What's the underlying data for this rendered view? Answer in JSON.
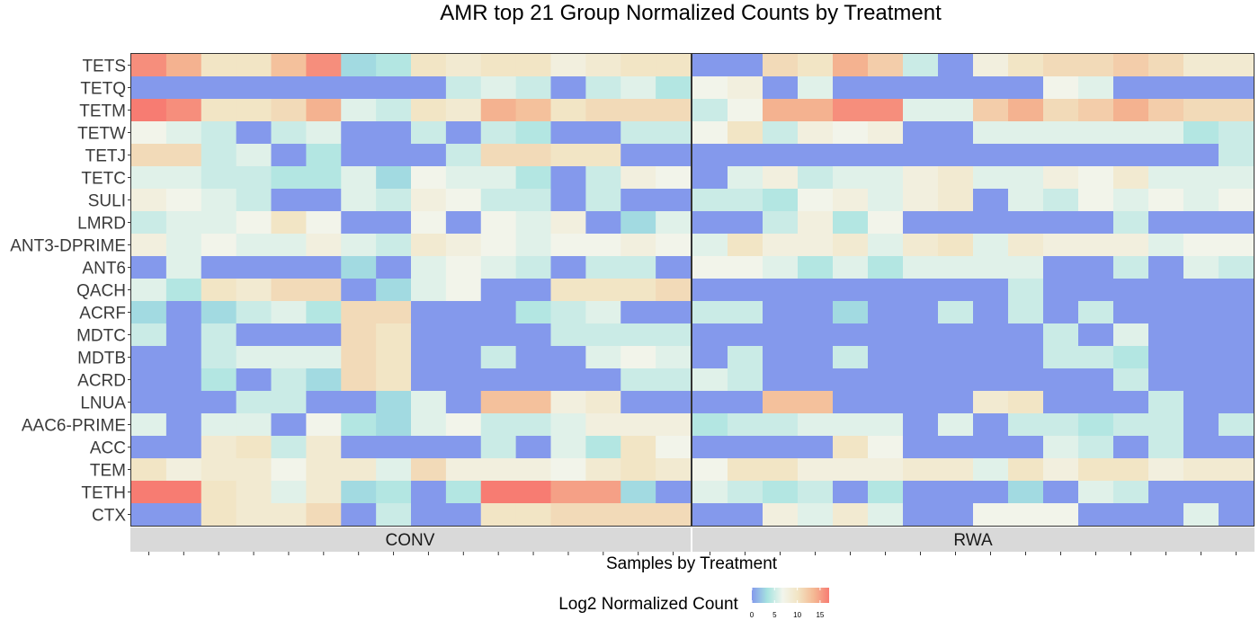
{
  "chart_data": {
    "type": "heatmap",
    "title": "AMR top 21 Group Normalized Counts by Treatment",
    "xlabel": "Samples by Treatment",
    "legend": {
      "title": "Log2 Normalized Count",
      "ticks": [
        0,
        5,
        10,
        15
      ],
      "range": [
        0,
        17
      ],
      "placement": "bottom"
    },
    "colors": [
      "#8499ec",
      "#a6e3e0",
      "#f2f5ec",
      "#f2e4c3",
      "#f4b994",
      "#f77c72"
    ],
    "rows": [
      "TETS",
      "TETQ",
      "TETM",
      "TETW",
      "TETJ",
      "TETC",
      "SULI",
      "LMRD",
      "ANT3-DPRIME",
      "ANT6",
      "QACH",
      "ACRF",
      "MDTC",
      "MDTB",
      "ACRD",
      "LNUA",
      "AAC6-PRIME",
      "ACC",
      "TEM",
      "TETH",
      "CTX"
    ],
    "panels": [
      {
        "name": "CONV",
        "values": [
          [
            16,
            14,
            10,
            10,
            13,
            16,
            3,
            4,
            10,
            9,
            10,
            10,
            8,
            9,
            10,
            10
          ],
          [
            0,
            0,
            0,
            0,
            0,
            0,
            0,
            0,
            0,
            5,
            6,
            5,
            0,
            5,
            6,
            4
          ],
          [
            17,
            16,
            10,
            10,
            11,
            14,
            6,
            5,
            10,
            9,
            14,
            13,
            10,
            11,
            11,
            11
          ],
          [
            7,
            6,
            5,
            0,
            5,
            6,
            0,
            0,
            5,
            0,
            5,
            4,
            0,
            0,
            5,
            5
          ],
          [
            11,
            11,
            5,
            6,
            0,
            4,
            0,
            0,
            0,
            5,
            11,
            11,
            10,
            10,
            0,
            0
          ],
          [
            6,
            6,
            5,
            5,
            4,
            4,
            6,
            3,
            7,
            6,
            6,
            4,
            0,
            5,
            8,
            7
          ],
          [
            8,
            7,
            6,
            5,
            0,
            0,
            6,
            5,
            8,
            7,
            5,
            5,
            0,
            5,
            0,
            0
          ],
          [
            5,
            6,
            6,
            7,
            10,
            7,
            0,
            0,
            7,
            0,
            7,
            6,
            8,
            0,
            3,
            6
          ],
          [
            8,
            6,
            7,
            6,
            6,
            8,
            6,
            5,
            9,
            8,
            7,
            6,
            7,
            7,
            8,
            7
          ],
          [
            0,
            6,
            0,
            0,
            0,
            0,
            3,
            0,
            6,
            7,
            6,
            5,
            0,
            5,
            5,
            0
          ],
          [
            6,
            4,
            10,
            9,
            11,
            11,
            0,
            3,
            6,
            7,
            0,
            0,
            10,
            10,
            10,
            11
          ],
          [
            3,
            0,
            3,
            5,
            6,
            4,
            11,
            11,
            0,
            0,
            0,
            4,
            5,
            6,
            0,
            0
          ],
          [
            5,
            0,
            5,
            0,
            0,
            0,
            11,
            10,
            0,
            0,
            0,
            0,
            5,
            5,
            5,
            5
          ],
          [
            0,
            0,
            5,
            6,
            6,
            6,
            11,
            10,
            0,
            0,
            5,
            0,
            0,
            6,
            7,
            6
          ],
          [
            0,
            0,
            4,
            0,
            5,
            3,
            11,
            10,
            0,
            0,
            0,
            0,
            0,
            0,
            5,
            5
          ],
          [
            0,
            0,
            0,
            5,
            5,
            0,
            0,
            3,
            6,
            0,
            13,
            13,
            8,
            9,
            0,
            0
          ],
          [
            6,
            0,
            6,
            6,
            0,
            7,
            4,
            3,
            6,
            7,
            5,
            5,
            6,
            8,
            8,
            8
          ],
          [
            0,
            0,
            9,
            10,
            5,
            9,
            0,
            0,
            0,
            0,
            5,
            0,
            6,
            4,
            10,
            7
          ],
          [
            10,
            8,
            9,
            9,
            7,
            9,
            9,
            6,
            11,
            8,
            8,
            8,
            7,
            9,
            10,
            9
          ],
          [
            17,
            17,
            10,
            9,
            6,
            9,
            3,
            4,
            0,
            4,
            17,
            17,
            15,
            15,
            3,
            0
          ],
          [
            0,
            0,
            10,
            9,
            9,
            11,
            0,
            5,
            0,
            0,
            10,
            10,
            11,
            11,
            11,
            11
          ]
        ]
      },
      {
        "name": "RWA",
        "values": [
          [
            0,
            0,
            11,
            10,
            14,
            12,
            5,
            0,
            8,
            10,
            11,
            11,
            12,
            11,
            9,
            9
          ],
          [
            7,
            8,
            0,
            6,
            0,
            0,
            0,
            0,
            0,
            0,
            7,
            6,
            0,
            0,
            0,
            0
          ],
          [
            5,
            7,
            14,
            14,
            16,
            16,
            6,
            6,
            12,
            14,
            11,
            12,
            14,
            12,
            11,
            11
          ],
          [
            7,
            10,
            5,
            8,
            7,
            8,
            0,
            0,
            6,
            6,
            6,
            6,
            6,
            6,
            4,
            5
          ],
          [
            0,
            0,
            0,
            0,
            0,
            0,
            0,
            0,
            0,
            0,
            0,
            0,
            0,
            0,
            0,
            5
          ],
          [
            0,
            6,
            8,
            5,
            6,
            6,
            8,
            9,
            6,
            6,
            8,
            7,
            9,
            6,
            6,
            6
          ],
          [
            5,
            5,
            4,
            7,
            8,
            6,
            8,
            9,
            0,
            6,
            5,
            7,
            6,
            7,
            6,
            7
          ],
          [
            0,
            0,
            5,
            8,
            4,
            7,
            0,
            0,
            0,
            0,
            0,
            0,
            5,
            0,
            0,
            0
          ],
          [
            6,
            10,
            8,
            8,
            9,
            6,
            9,
            10,
            6,
            9,
            8,
            8,
            8,
            6,
            7,
            7
          ],
          [
            7,
            7,
            6,
            4,
            6,
            4,
            6,
            6,
            6,
            6,
            0,
            0,
            5,
            0,
            6,
            5
          ],
          [
            0,
            0,
            0,
            0,
            0,
            0,
            0,
            0,
            0,
            5,
            0,
            0,
            0,
            0,
            0,
            0
          ],
          [
            5,
            5,
            0,
            0,
            3,
            0,
            0,
            5,
            0,
            5,
            0,
            5,
            0,
            0,
            0,
            0
          ],
          [
            0,
            0,
            0,
            0,
            0,
            0,
            0,
            0,
            0,
            0,
            5,
            0,
            6,
            0,
            0,
            0
          ],
          [
            0,
            5,
            0,
            0,
            5,
            0,
            0,
            0,
            0,
            0,
            5,
            5,
            4,
            0,
            0,
            0
          ],
          [
            6,
            5,
            0,
            0,
            0,
            0,
            0,
            0,
            0,
            0,
            0,
            0,
            5,
            0,
            0,
            0
          ],
          [
            0,
            0,
            13,
            13,
            0,
            0,
            0,
            0,
            9,
            10,
            0,
            0,
            0,
            5,
            0,
            0
          ],
          [
            4,
            5,
            5,
            6,
            6,
            6,
            0,
            6,
            0,
            5,
            5,
            4,
            5,
            5,
            0,
            5
          ],
          [
            0,
            0,
            0,
            0,
            10,
            7,
            0,
            0,
            0,
            0,
            6,
            5,
            0,
            5,
            0,
            0
          ],
          [
            7,
            10,
            10,
            8,
            8,
            8,
            9,
            9,
            6,
            10,
            8,
            10,
            10,
            8,
            9,
            9
          ],
          [
            6,
            5,
            4,
            5,
            0,
            4,
            0,
            0,
            0,
            3,
            0,
            6,
            5,
            0,
            0,
            0
          ],
          [
            0,
            0,
            8,
            6,
            9,
            6,
            0,
            0,
            7,
            7,
            7,
            0,
            0,
            0,
            6,
            0
          ]
        ]
      }
    ]
  }
}
